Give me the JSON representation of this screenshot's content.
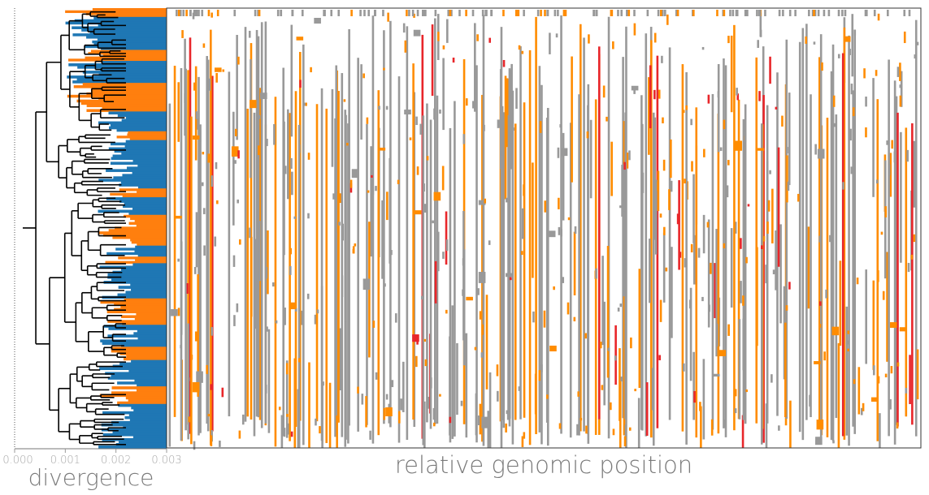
{
  "chart_data": [
    {
      "type": "tree",
      "description_role": "phylogenetic tree with clade color strip",
      "xlabel": "divergence",
      "xlim": [
        0.0,
        0.003
      ],
      "xticks": [
        0.0,
        0.001,
        0.002,
        0.003
      ],
      "xtick_labels": [
        "0.000",
        "0.001",
        "0.002",
        "0.003"
      ],
      "clade_colors": {
        "clade_a": "#1f77b4",
        "clade_b": "#ff7f0e"
      },
      "clade_blocks": [
        {
          "clade": "clade_b",
          "start": 0.0,
          "end": 0.02
        },
        {
          "clade": "clade_a",
          "start": 0.02,
          "end": 0.095
        },
        {
          "clade": "clade_b",
          "start": 0.095,
          "end": 0.12
        },
        {
          "clade": "clade_a",
          "start": 0.12,
          "end": 0.17
        },
        {
          "clade": "clade_b",
          "start": 0.17,
          "end": 0.235
        },
        {
          "clade": "clade_a",
          "start": 0.235,
          "end": 0.28
        },
        {
          "clade": "clade_b",
          "start": 0.28,
          "end": 0.3
        },
        {
          "clade": "clade_a",
          "start": 0.3,
          "end": 0.41
        },
        {
          "clade": "clade_b",
          "start": 0.41,
          "end": 0.43
        },
        {
          "clade": "clade_a",
          "start": 0.43,
          "end": 0.47
        },
        {
          "clade": "clade_b",
          "start": 0.47,
          "end": 0.54
        },
        {
          "clade": "clade_a",
          "start": 0.54,
          "end": 0.565
        },
        {
          "clade": "clade_b",
          "start": 0.565,
          "end": 0.58
        },
        {
          "clade": "clade_a",
          "start": 0.58,
          "end": 0.66
        },
        {
          "clade": "clade_b",
          "start": 0.66,
          "end": 0.72
        },
        {
          "clade": "clade_a",
          "start": 0.72,
          "end": 0.77
        },
        {
          "clade": "clade_b",
          "start": 0.77,
          "end": 0.8
        },
        {
          "clade": "clade_a",
          "start": 0.8,
          "end": 0.86
        },
        {
          "clade": "clade_b",
          "start": 0.86,
          "end": 0.9
        },
        {
          "clade": "clade_a",
          "start": 0.9,
          "end": 1.0
        }
      ]
    },
    {
      "type": "heatmap",
      "description_role": "mutation matrix along genome",
      "xlabel": "relative genomic position",
      "ylabel": "",
      "colors": {
        "background": "#ffffff",
        "gray_mutation": "#999999",
        "orange_mutation": "#ff8c00",
        "red_mutation": "#e8262a"
      },
      "grid": false,
      "columns": {
        "count": 330,
        "orange_fraction": 0.33,
        "red_fraction": 0.07,
        "gray_fraction": 0.6
      }
    }
  ]
}
